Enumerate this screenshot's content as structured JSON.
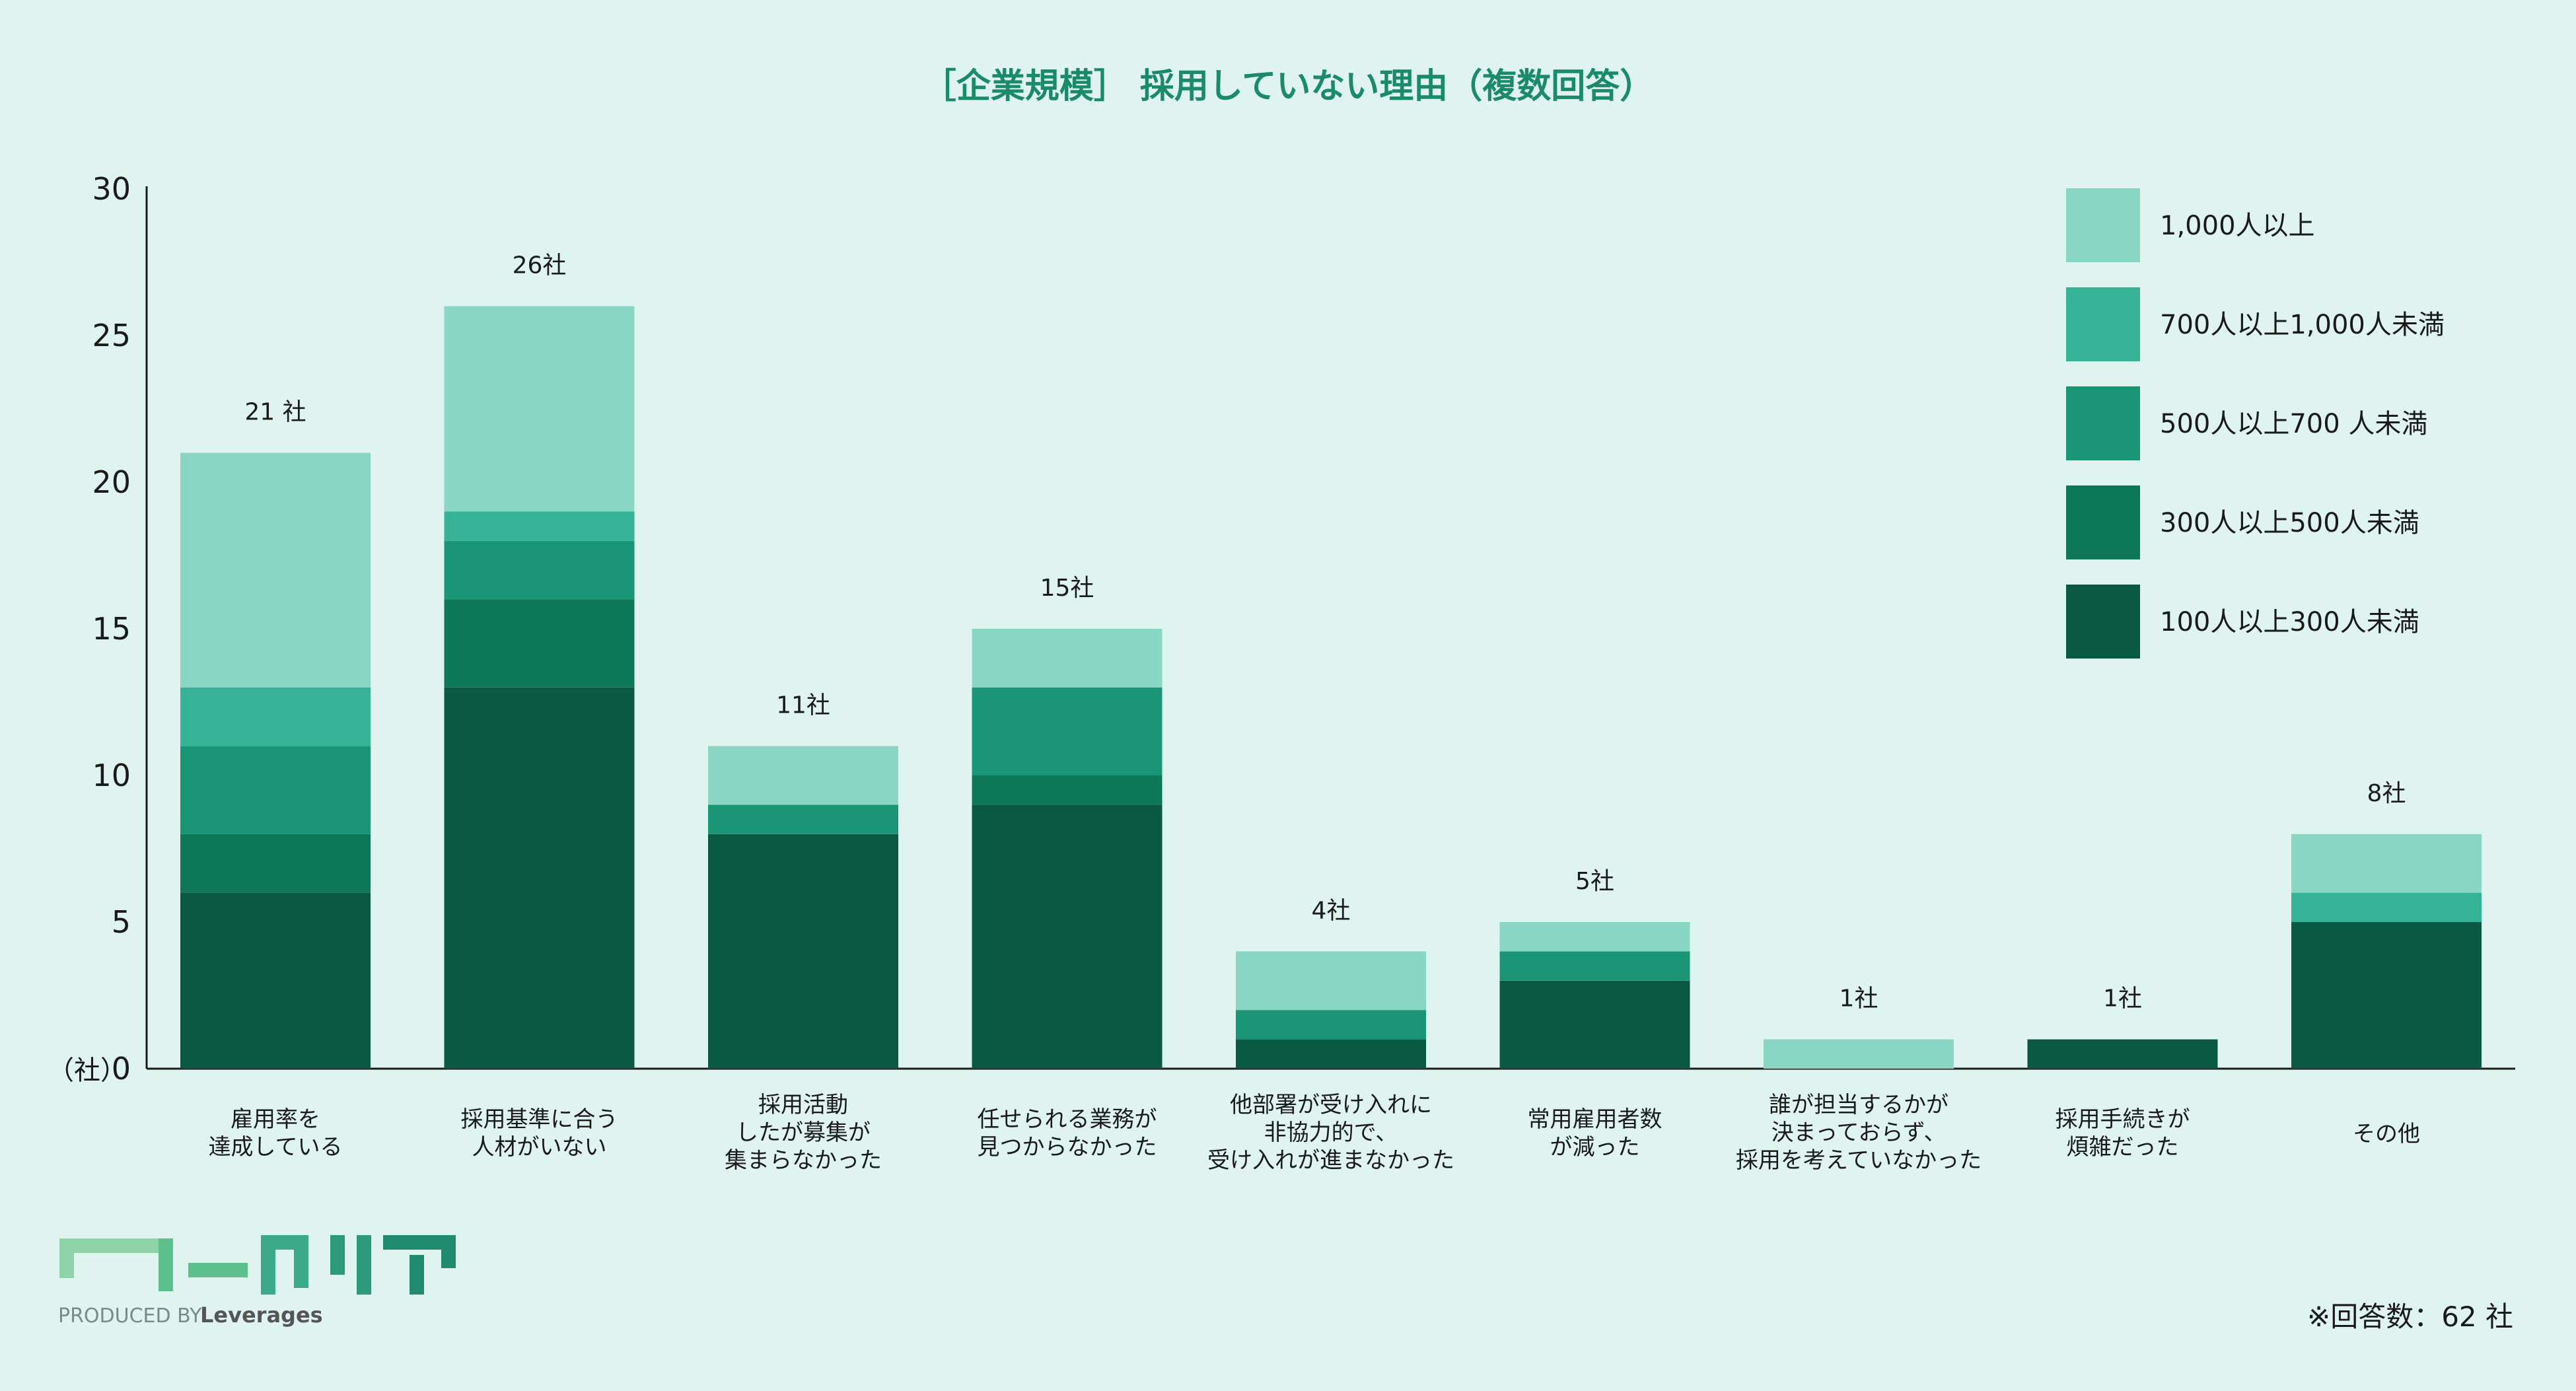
{
  "chart_data": {
    "type": "bar",
    "stacked": true,
    "title": "［企業規模］ 採用していない理由（複数回答）",
    "ylabel": "（社）",
    "ylim": [
      0,
      30
    ],
    "yticks": [
      "0",
      "5",
      "10",
      "15",
      "20",
      "25",
      "30"
    ],
    "categories": [
      [
        "雇用率を",
        "達成している"
      ],
      [
        "採用基準に合う",
        "人材がいない"
      ],
      [
        "採用活動",
        "したが募集が",
        "集まらなかった"
      ],
      [
        "任せられる業務が",
        "見つからなかった"
      ],
      [
        "他部署が受け入れに",
        "非協力的で、",
        "受け入れが進まなかった"
      ],
      [
        "常用雇用者数",
        "が減った"
      ],
      [
        "誰が担当するかが",
        "決まっておらず、",
        "採用を考えていなかった"
      ],
      [
        "採用手続きが",
        "煩雑だった"
      ],
      [
        "その他"
      ]
    ],
    "totals_labels": [
      "21 社",
      "26社",
      "11社",
      "15社",
      "4社",
      "5社",
      "1社",
      "1社",
      "8社"
    ],
    "series": [
      {
        "name": "100人以上300人未満",
        "color": "#0a5a43",
        "values": [
          6,
          13,
          8,
          9,
          1,
          3,
          0,
          1,
          5
        ]
      },
      {
        "name": "300人以上500人未満",
        "color": "#0f7858",
        "values": [
          2,
          3,
          0,
          1,
          0,
          0,
          0,
          0,
          0
        ]
      },
      {
        "name": "500人以上700 人未満",
        "color": "#1a9677",
        "values": [
          3,
          2,
          1,
          3,
          1,
          1,
          0,
          0,
          0
        ]
      },
      {
        "name": "700人以上1,000人未満",
        "color": "#36b396",
        "values": [
          2,
          1,
          0,
          0,
          0,
          0,
          0,
          0,
          1
        ]
      },
      {
        "name": "1,000人以上",
        "color": "#8ad6c4",
        "values": [
          8,
          7,
          2,
          2,
          2,
          1,
          1,
          0,
          2
        ]
      }
    ],
    "legend_position": "top-right",
    "grid": false
  },
  "footer": {
    "logo_text": "ワークリア",
    "produced_by": "PRODUCED BY",
    "brand": "Leverages",
    "note": "※回答数：62 社"
  },
  "colors": {
    "background": "#e0f4ef",
    "title": "#1a8a68",
    "axis": "#1a1a1a"
  }
}
